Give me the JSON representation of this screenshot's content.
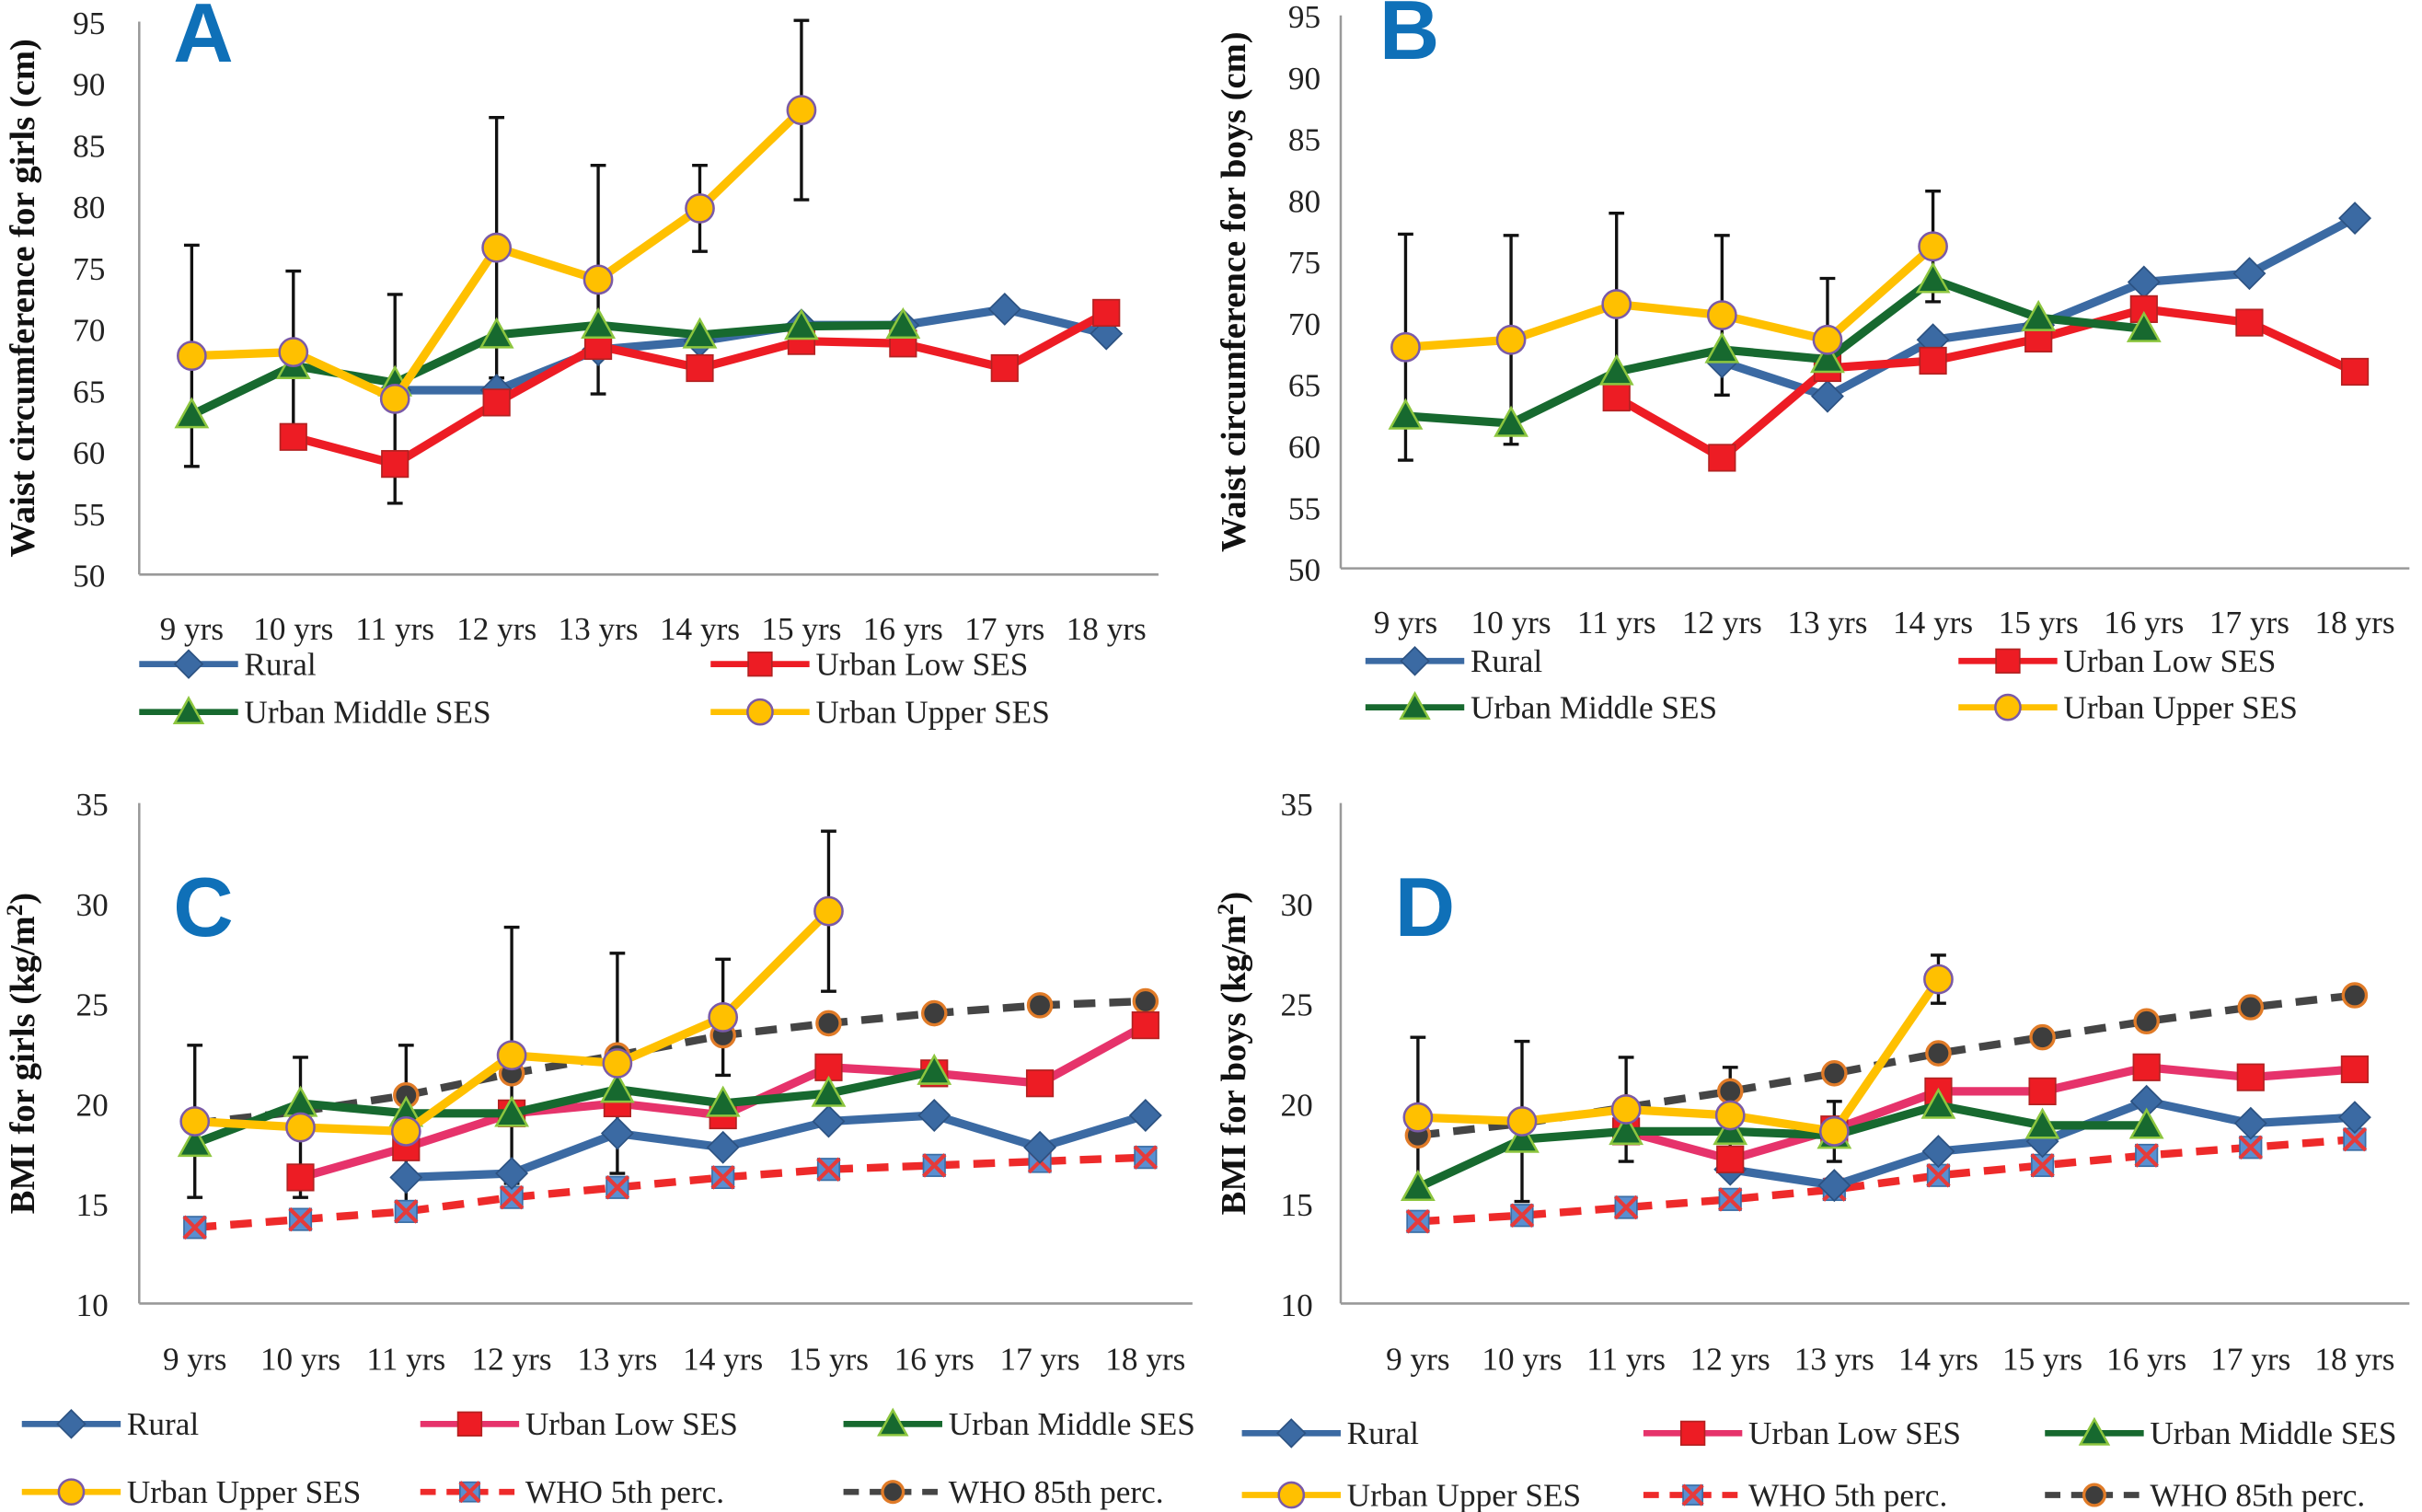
{
  "colors": {
    "Rural": "#3b6aa3",
    "Urban Low SES": "#ed1c24",
    "Urban Low SES (BMI line)": "#e6336b",
    "Urban Middle SES": "#17692f",
    "Urban Upper SES": "#ffc000",
    "WHO 5th perc.": "#ee2a2a",
    "WHO 85th perc.": "#454545",
    "panel_letter": "#0f70b8"
  },
  "chart_data": [
    {
      "panel": "A",
      "type": "line",
      "ylabel": "Waist circumference for girls (cm)",
      "categories": [
        "9 yrs",
        "10 yrs",
        "11 yrs",
        "12 yrs",
        "13 yrs",
        "14 yrs",
        "15 yrs",
        "16 yrs",
        "17 yrs",
        "18 yrs"
      ],
      "ylim": [
        50,
        95
      ],
      "yticks": [
        "50",
        "55",
        "60",
        "65",
        "70",
        "75",
        "80",
        "85",
        "90",
        "95"
      ],
      "legend": "bottom",
      "grid": false,
      "series": [
        {
          "name": "Rural",
          "values": [
            null,
            null,
            65,
            65,
            68.3,
            69,
            70.3,
            70.3,
            71.6,
            69.6
          ]
        },
        {
          "name": "Urban Low SES",
          "values": [
            null,
            61.2,
            59,
            64,
            68.6,
            66.8,
            69,
            68.8,
            66.8,
            71.3
          ]
        },
        {
          "name": "Urban Middle SES",
          "values": [
            63,
            67,
            65.6,
            69.5,
            70.3,
            69.5,
            70.2,
            70.3,
            null,
            null
          ]
        },
        {
          "name": "Urban Upper SES",
          "values": [
            67.8,
            68.1,
            64.3,
            76.6,
            74,
            79.8,
            87.8,
            null,
            null,
            null
          ],
          "error": [
            9,
            6.6,
            8.5,
            10.6,
            9.3,
            3.5,
            7.3,
            null,
            null,
            null
          ]
        }
      ]
    },
    {
      "panel": "B",
      "type": "line",
      "ylabel": "Waist circumference for boys (cm)",
      "categories": [
        "9 yrs",
        "10 yrs",
        "11 yrs",
        "12 yrs",
        "13 yrs",
        "14 yrs",
        "15 yrs",
        "16 yrs",
        "17 yrs",
        "18 yrs"
      ],
      "ylim": [
        50,
        95
      ],
      "yticks": [
        "50",
        "55",
        "60",
        "65",
        "70",
        "75",
        "80",
        "85",
        "90",
        "95"
      ],
      "legend": "bottom",
      "grid": false,
      "series": [
        {
          "name": "Rural",
          "values": [
            null,
            null,
            null,
            66.8,
            64,
            68.6,
            69.8,
            73.3,
            74,
            78.5
          ]
        },
        {
          "name": "Urban Low SES",
          "values": [
            null,
            null,
            63.9,
            59,
            66.3,
            66.9,
            68.7,
            71.1,
            70,
            66
          ]
        },
        {
          "name": "Urban Middle SES",
          "values": [
            62.4,
            61.8,
            66,
            67.8,
            67,
            73.5,
            70.4,
            69.5,
            null,
            null
          ]
        },
        {
          "name": "Urban Upper SES",
          "values": [
            68,
            68.6,
            71.5,
            70.6,
            68.6,
            76.2,
            null,
            null,
            null,
            null
          ],
          "error": [
            9.2,
            8.5,
            7.4,
            6.5,
            5,
            4.5,
            null,
            null,
            null,
            null
          ]
        }
      ]
    },
    {
      "panel": "C",
      "type": "line",
      "ylabel": "BMI for girls (kg/m2)",
      "categories": [
        "9 yrs",
        "10 yrs",
        "11 yrs",
        "12 yrs",
        "13 yrs",
        "14 yrs",
        "15 yrs",
        "16 yrs",
        "17 yrs",
        "18 yrs"
      ],
      "ylim": [
        10,
        35
      ],
      "yticks": [
        "10",
        "15",
        "20",
        "25",
        "30",
        "35"
      ],
      "legend": "bottom",
      "grid": false,
      "series": [
        {
          "name": "Rural",
          "values": [
            null,
            null,
            16.3,
            16.5,
            18.5,
            17.8,
            19.1,
            19.4,
            17.8,
            19.4
          ]
        },
        {
          "name": "Urban Low SES",
          "values": [
            null,
            16.3,
            17.8,
            19.5,
            20,
            19.4,
            21.8,
            21.5,
            21,
            23.9
          ]
        },
        {
          "name": "Urban Middle SES",
          "values": [
            18,
            20,
            19.5,
            19.5,
            20.7,
            20,
            20.5,
            21.6,
            null,
            null
          ]
        },
        {
          "name": "Urban Upper SES",
          "values": [
            19.1,
            18.8,
            18.6,
            22.4,
            22,
            24.3,
            29.6,
            null,
            null,
            null
          ],
          "error": [
            3.8,
            3.5,
            4.3,
            6.4,
            5.5,
            2.9,
            4
          ]
        },
        {
          "name": "WHO 5th perc.",
          "values": [
            13.8,
            14.2,
            14.6,
            15.3,
            15.8,
            16.3,
            16.7,
            16.9,
            17.1,
            17.3
          ]
        },
        {
          "name": "WHO 85th perc.",
          "values": [
            19,
            19.6,
            20.4,
            21.5,
            22.4,
            23.4,
            24,
            24.5,
            24.9,
            25.1
          ]
        }
      ]
    },
    {
      "panel": "D",
      "type": "line",
      "ylabel": "BMI for boys (kg/m2)",
      "categories": [
        "9 yrs",
        "10 yrs",
        "11 yrs",
        "12 yrs",
        "13 yrs",
        "14 yrs",
        "15 yrs",
        "16 yrs",
        "17 yrs",
        "18 yrs"
      ],
      "ylim": [
        10,
        35
      ],
      "yticks": [
        "10",
        "15",
        "20",
        "25",
        "30",
        "35"
      ],
      "legend": "bottom",
      "grid": false,
      "series": [
        {
          "name": "Rural",
          "values": [
            null,
            null,
            null,
            16.7,
            15.9,
            17.6,
            18.1,
            20.1,
            19,
            19.3
          ]
        },
        {
          "name": "Urban Low SES",
          "values": [
            null,
            null,
            18.6,
            17.2,
            18.7,
            20.6,
            20.6,
            21.8,
            21.3,
            21.7
          ]
        },
        {
          "name": "Urban Middle SES",
          "values": [
            15.8,
            18.2,
            18.6,
            18.6,
            18.4,
            19.9,
            18.9,
            18.9,
            null,
            null
          ]
        },
        {
          "name": "Urban Upper SES",
          "values": [
            19.3,
            19.1,
            19.7,
            19.4,
            18.6,
            26.2,
            null,
            null,
            null,
            null
          ],
          "error": [
            4,
            4,
            2.6,
            2.4,
            1.5,
            1.2
          ]
        },
        {
          "name": "WHO 5th perc.",
          "values": [
            14.1,
            14.4,
            14.8,
            15.2,
            15.7,
            16.4,
            16.9,
            17.4,
            17.8,
            18.2
          ]
        },
        {
          "name": "WHO 85th perc.",
          "values": [
            18.4,
            19,
            19.8,
            20.6,
            21.5,
            22.5,
            23.3,
            24.1,
            24.8,
            25.4
          ]
        }
      ]
    }
  ]
}
